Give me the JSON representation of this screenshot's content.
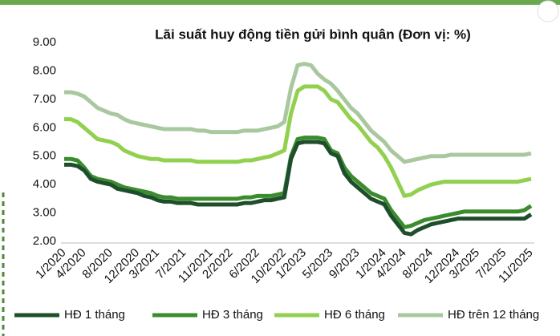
{
  "chart_data": {
    "type": "line",
    "title": "Lãi suất huy động tiền gửi bình quân (Đơn vị: %)",
    "categories": [
      "1/2020",
      null,
      null,
      "4/2020",
      null,
      null,
      null,
      "8/2020",
      null,
      null,
      null,
      "12/2020",
      null,
      null,
      "3/2021",
      null,
      null,
      null,
      "7/2021",
      null,
      null,
      null,
      "11/2021",
      null,
      null,
      "2/2022",
      null,
      null,
      null,
      "6/2022",
      null,
      null,
      null,
      "10/2022",
      null,
      null,
      "1/2023",
      null,
      null,
      null,
      "5/2023",
      null,
      null,
      null,
      "9/2023",
      null,
      null,
      null,
      "1/2024",
      null,
      null,
      "4/2024",
      null,
      null,
      null,
      "8/2024",
      null,
      null,
      null,
      "12/2024",
      null,
      null,
      "3/2025",
      null,
      null,
      null,
      "7/2025",
      null,
      null,
      null,
      "11/2025"
    ],
    "series": [
      {
        "name": "HĐ 1 tháng",
        "color": "#1f4e2c",
        "values": [
          4.7,
          4.7,
          4.65,
          4.5,
          4.2,
          4.1,
          4.05,
          4.0,
          3.85,
          3.8,
          3.75,
          3.7,
          3.6,
          3.55,
          3.45,
          3.4,
          3.4,
          3.35,
          3.35,
          3.35,
          3.3,
          3.3,
          3.3,
          3.3,
          3.3,
          3.3,
          3.3,
          3.35,
          3.35,
          3.4,
          3.45,
          3.45,
          3.5,
          3.55,
          4.9,
          5.45,
          5.5,
          5.5,
          5.5,
          5.45,
          5.1,
          5.0,
          4.4,
          4.1,
          3.9,
          3.7,
          3.5,
          3.4,
          3.3,
          2.9,
          2.6,
          2.3,
          2.25,
          2.4,
          2.5,
          2.6,
          2.65,
          2.7,
          2.75,
          2.8,
          2.8,
          2.8,
          2.8,
          2.8,
          2.8,
          2.8,
          2.8,
          2.8,
          2.8,
          2.8,
          2.95
        ]
      },
      {
        "name": "HĐ 3 tháng",
        "color": "#3b8c2f",
        "values": [
          4.9,
          4.9,
          4.85,
          4.6,
          4.3,
          4.2,
          4.15,
          4.1,
          4.0,
          3.9,
          3.85,
          3.8,
          3.75,
          3.7,
          3.6,
          3.55,
          3.55,
          3.5,
          3.5,
          3.5,
          3.5,
          3.5,
          3.5,
          3.5,
          3.5,
          3.5,
          3.5,
          3.55,
          3.55,
          3.6,
          3.6,
          3.6,
          3.65,
          3.7,
          5.0,
          5.6,
          5.65,
          5.65,
          5.65,
          5.6,
          5.2,
          5.1,
          4.6,
          4.3,
          4.1,
          3.9,
          3.7,
          3.6,
          3.5,
          3.1,
          2.8,
          2.5,
          2.55,
          2.65,
          2.75,
          2.8,
          2.85,
          2.9,
          2.95,
          3.0,
          3.05,
          3.05,
          3.05,
          3.05,
          3.05,
          3.05,
          3.05,
          3.05,
          3.05,
          3.1,
          3.25
        ]
      },
      {
        "name": "HĐ 6 tháng",
        "color": "#92d050",
        "values": [
          6.3,
          6.3,
          6.2,
          6.0,
          5.8,
          5.6,
          5.55,
          5.5,
          5.4,
          5.2,
          5.1,
          5.0,
          4.95,
          4.9,
          4.9,
          4.85,
          4.85,
          4.85,
          4.85,
          4.85,
          4.8,
          4.8,
          4.8,
          4.8,
          4.8,
          4.8,
          4.8,
          4.85,
          4.85,
          4.9,
          4.95,
          5.0,
          5.1,
          5.2,
          6.5,
          7.3,
          7.45,
          7.45,
          7.45,
          7.3,
          7.0,
          6.9,
          6.6,
          6.3,
          6.1,
          5.8,
          5.5,
          5.3,
          5.0,
          4.6,
          4.1,
          3.6,
          3.65,
          3.8,
          3.9,
          4.0,
          4.05,
          4.1,
          4.1,
          4.1,
          4.1,
          4.1,
          4.1,
          4.1,
          4.1,
          4.1,
          4.1,
          4.1,
          4.1,
          4.15,
          4.2
        ]
      },
      {
        "name": "HĐ trên 12 tháng",
        "color": "#a9c8a0",
        "values": [
          7.25,
          7.25,
          7.2,
          7.1,
          6.9,
          6.7,
          6.6,
          6.5,
          6.45,
          6.3,
          6.2,
          6.15,
          6.1,
          6.05,
          6.0,
          5.95,
          5.95,
          5.95,
          5.95,
          5.95,
          5.9,
          5.9,
          5.85,
          5.85,
          5.85,
          5.85,
          5.85,
          5.9,
          5.9,
          5.9,
          5.95,
          6.0,
          6.05,
          6.2,
          7.4,
          8.2,
          8.25,
          8.2,
          7.9,
          7.7,
          7.55,
          7.3,
          7.0,
          6.7,
          6.5,
          6.2,
          5.9,
          5.7,
          5.5,
          5.2,
          5.0,
          4.8,
          4.85,
          4.9,
          4.95,
          5.0,
          5.0,
          5.0,
          5.05,
          5.05,
          5.05,
          5.05,
          5.05,
          5.05,
          5.05,
          5.05,
          5.05,
          5.05,
          5.05,
          5.05,
          5.1
        ]
      }
    ],
    "ylim": [
      2,
      9
    ],
    "yticks": [
      {
        "value": 2,
        "label": "2.00"
      },
      {
        "value": 3,
        "label": "3.00"
      },
      {
        "value": 4,
        "label": "4.00"
      },
      {
        "value": 5,
        "label": "5.00"
      },
      {
        "value": 6,
        "label": "6.00"
      },
      {
        "value": 7,
        "label": "7.00"
      },
      {
        "value": 8,
        "label": "8.00"
      },
      {
        "value": 9,
        "label": "9.00"
      }
    ],
    "grid": false,
    "legend": "bottom"
  }
}
